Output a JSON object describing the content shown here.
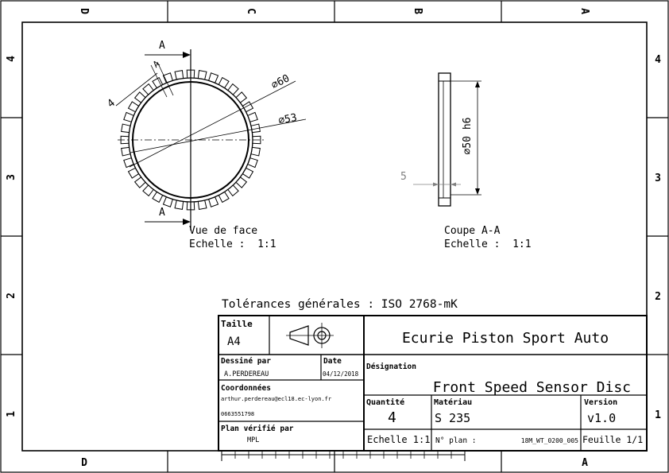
{
  "zones": {
    "top_columns": [
      "D",
      "C",
      "B",
      "A"
    ],
    "bottom_columns": [
      "D",
      "A"
    ],
    "rows": [
      "4",
      "3",
      "2",
      "1"
    ]
  },
  "front_view": {
    "section_letter": "A",
    "tooth_letter": "A",
    "dim_small": "4",
    "dim_outer": "⌀60",
    "dim_inner": "⌀53",
    "view_title": "Vue de face",
    "scale": "Echelle :  1:1"
  },
  "section_view": {
    "dim_diameter": "⌀50 h6",
    "dim_thickness": "5",
    "view_title": "Coupe A-A",
    "scale": "Echelle :  1:1"
  },
  "tolerances": "Tolérances générales : ISO 2768-mK",
  "title_block": {
    "size_label": "Taille",
    "size_value": "A4",
    "company": "Ecurie Piston Sport Auto",
    "drawn_by_label": "Dessiné par",
    "drawn_by": "A.PERDEREAU",
    "date_label": "Date",
    "date": "04/12/2018",
    "contact_label": "Coordonnées",
    "email": "arthur.perdereau@ecl18.ec-lyon.fr",
    "phone": "0663551798",
    "checked_label": "Plan vérifié par",
    "checked_by": "MPL",
    "designation_label": "Désignation",
    "designation": "Front Speed Sensor Disc",
    "quantity_label": "Quantité",
    "quantity": "4",
    "material_label": "Matériau",
    "material": "S 235",
    "version_label": "Version",
    "version": "v1.0",
    "scale": "Echelle 1:1",
    "plan_label": "N° plan :",
    "plan_number": "18M_WT_0200_005",
    "sheet": "Feuille 1/1"
  }
}
